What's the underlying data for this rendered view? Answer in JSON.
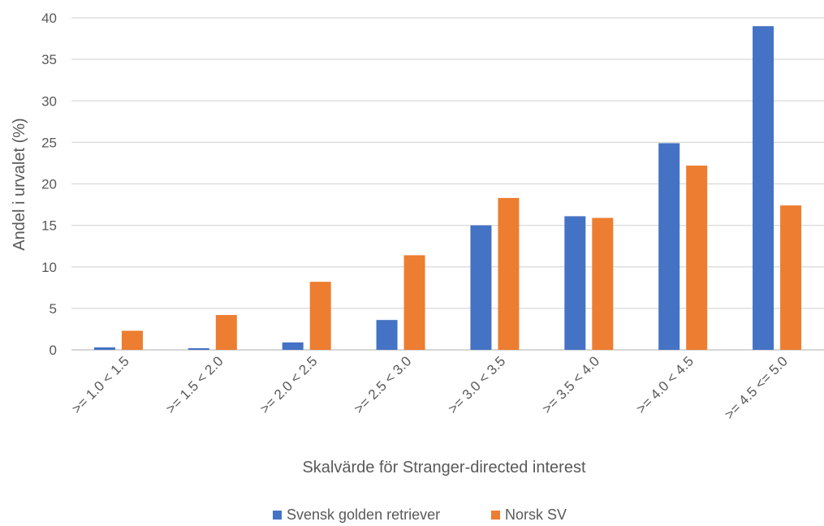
{
  "chart_data": {
    "type": "bar",
    "title": "",
    "xlabel": "Skalvärde för Stranger-directed interest",
    "ylabel": "Andel i urvalet (%)",
    "ylim": [
      0,
      40
    ],
    "yticks": [
      0,
      5,
      10,
      15,
      20,
      25,
      30,
      35,
      40
    ],
    "grid": true,
    "legend_position": "bottom",
    "categories": [
      ">= 1.0 < 1.5",
      ">= 1.5 < 2.0",
      ">= 2.0 < 2.5",
      ">= 2.5 < 3.0",
      ">= 3.0 < 3.5",
      ">= 3.5 < 4.0",
      ">= 4.0 < 4.5",
      ">= 4.5 <= 5.0"
    ],
    "series": [
      {
        "name": "Svensk golden retriever",
        "color": "#4472C4",
        "values": [
          0.3,
          0.2,
          0.9,
          3.6,
          15.0,
          16.1,
          24.9,
          39.0
        ]
      },
      {
        "name": "Norsk SV",
        "color": "#ED7D31",
        "values": [
          2.3,
          4.2,
          8.2,
          11.4,
          18.3,
          15.9,
          22.2,
          17.4
        ]
      }
    ]
  }
}
